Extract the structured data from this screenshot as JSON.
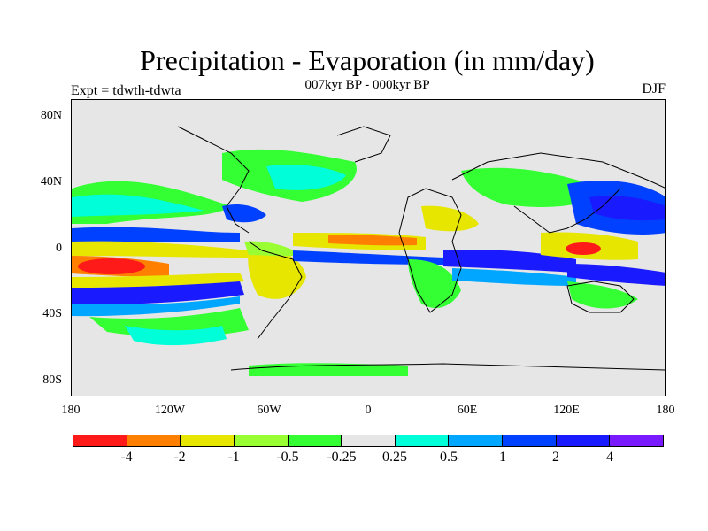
{
  "title": "Precipitation - Evaporation (in mm/day)",
  "subtitle": "007kyr BP - 000kyr BP",
  "left_label": "Expt = tdwth-tdwta",
  "right_label": "DJF",
  "lat_ticks": [
    "80N",
    "40N",
    "0",
    "40S",
    "80S"
  ],
  "lon_ticks": [
    "180",
    "120W",
    "60W",
    "0",
    "60E",
    "120E",
    "180"
  ],
  "colorbar": {
    "colors": [
      "#ff1a1a",
      "#ff8000",
      "#e6e600",
      "#99ff33",
      "#33ff33",
      "#e6e6e6",
      "#00ffd9",
      "#00a6ff",
      "#0040ff",
      "#1a1aff",
      "#7a1aff"
    ],
    "labels": [
      "-4",
      "-2",
      "-1",
      "-0.5",
      "-0.25",
      "0.25",
      "0.5",
      "1",
      "2",
      "4"
    ]
  },
  "map_data": {
    "background": "#e6e6e6",
    "coastline_color": "#000000",
    "fields": [
      {
        "level": "4",
        "color": "#1a1aff",
        "region": "south-pacific-convergence"
      },
      {
        "level": "2",
        "color": "#0040ff",
        "region": "north-pacific-east-asia"
      },
      {
        "level": "-4",
        "color": "#ff1a1a",
        "region": "central-pacific-south"
      },
      {
        "level": "-4",
        "color": "#ff1a1a",
        "region": "maritime-continent"
      },
      {
        "level": "-1",
        "color": "#e6e600",
        "region": "atlantic-itcz"
      }
    ]
  }
}
